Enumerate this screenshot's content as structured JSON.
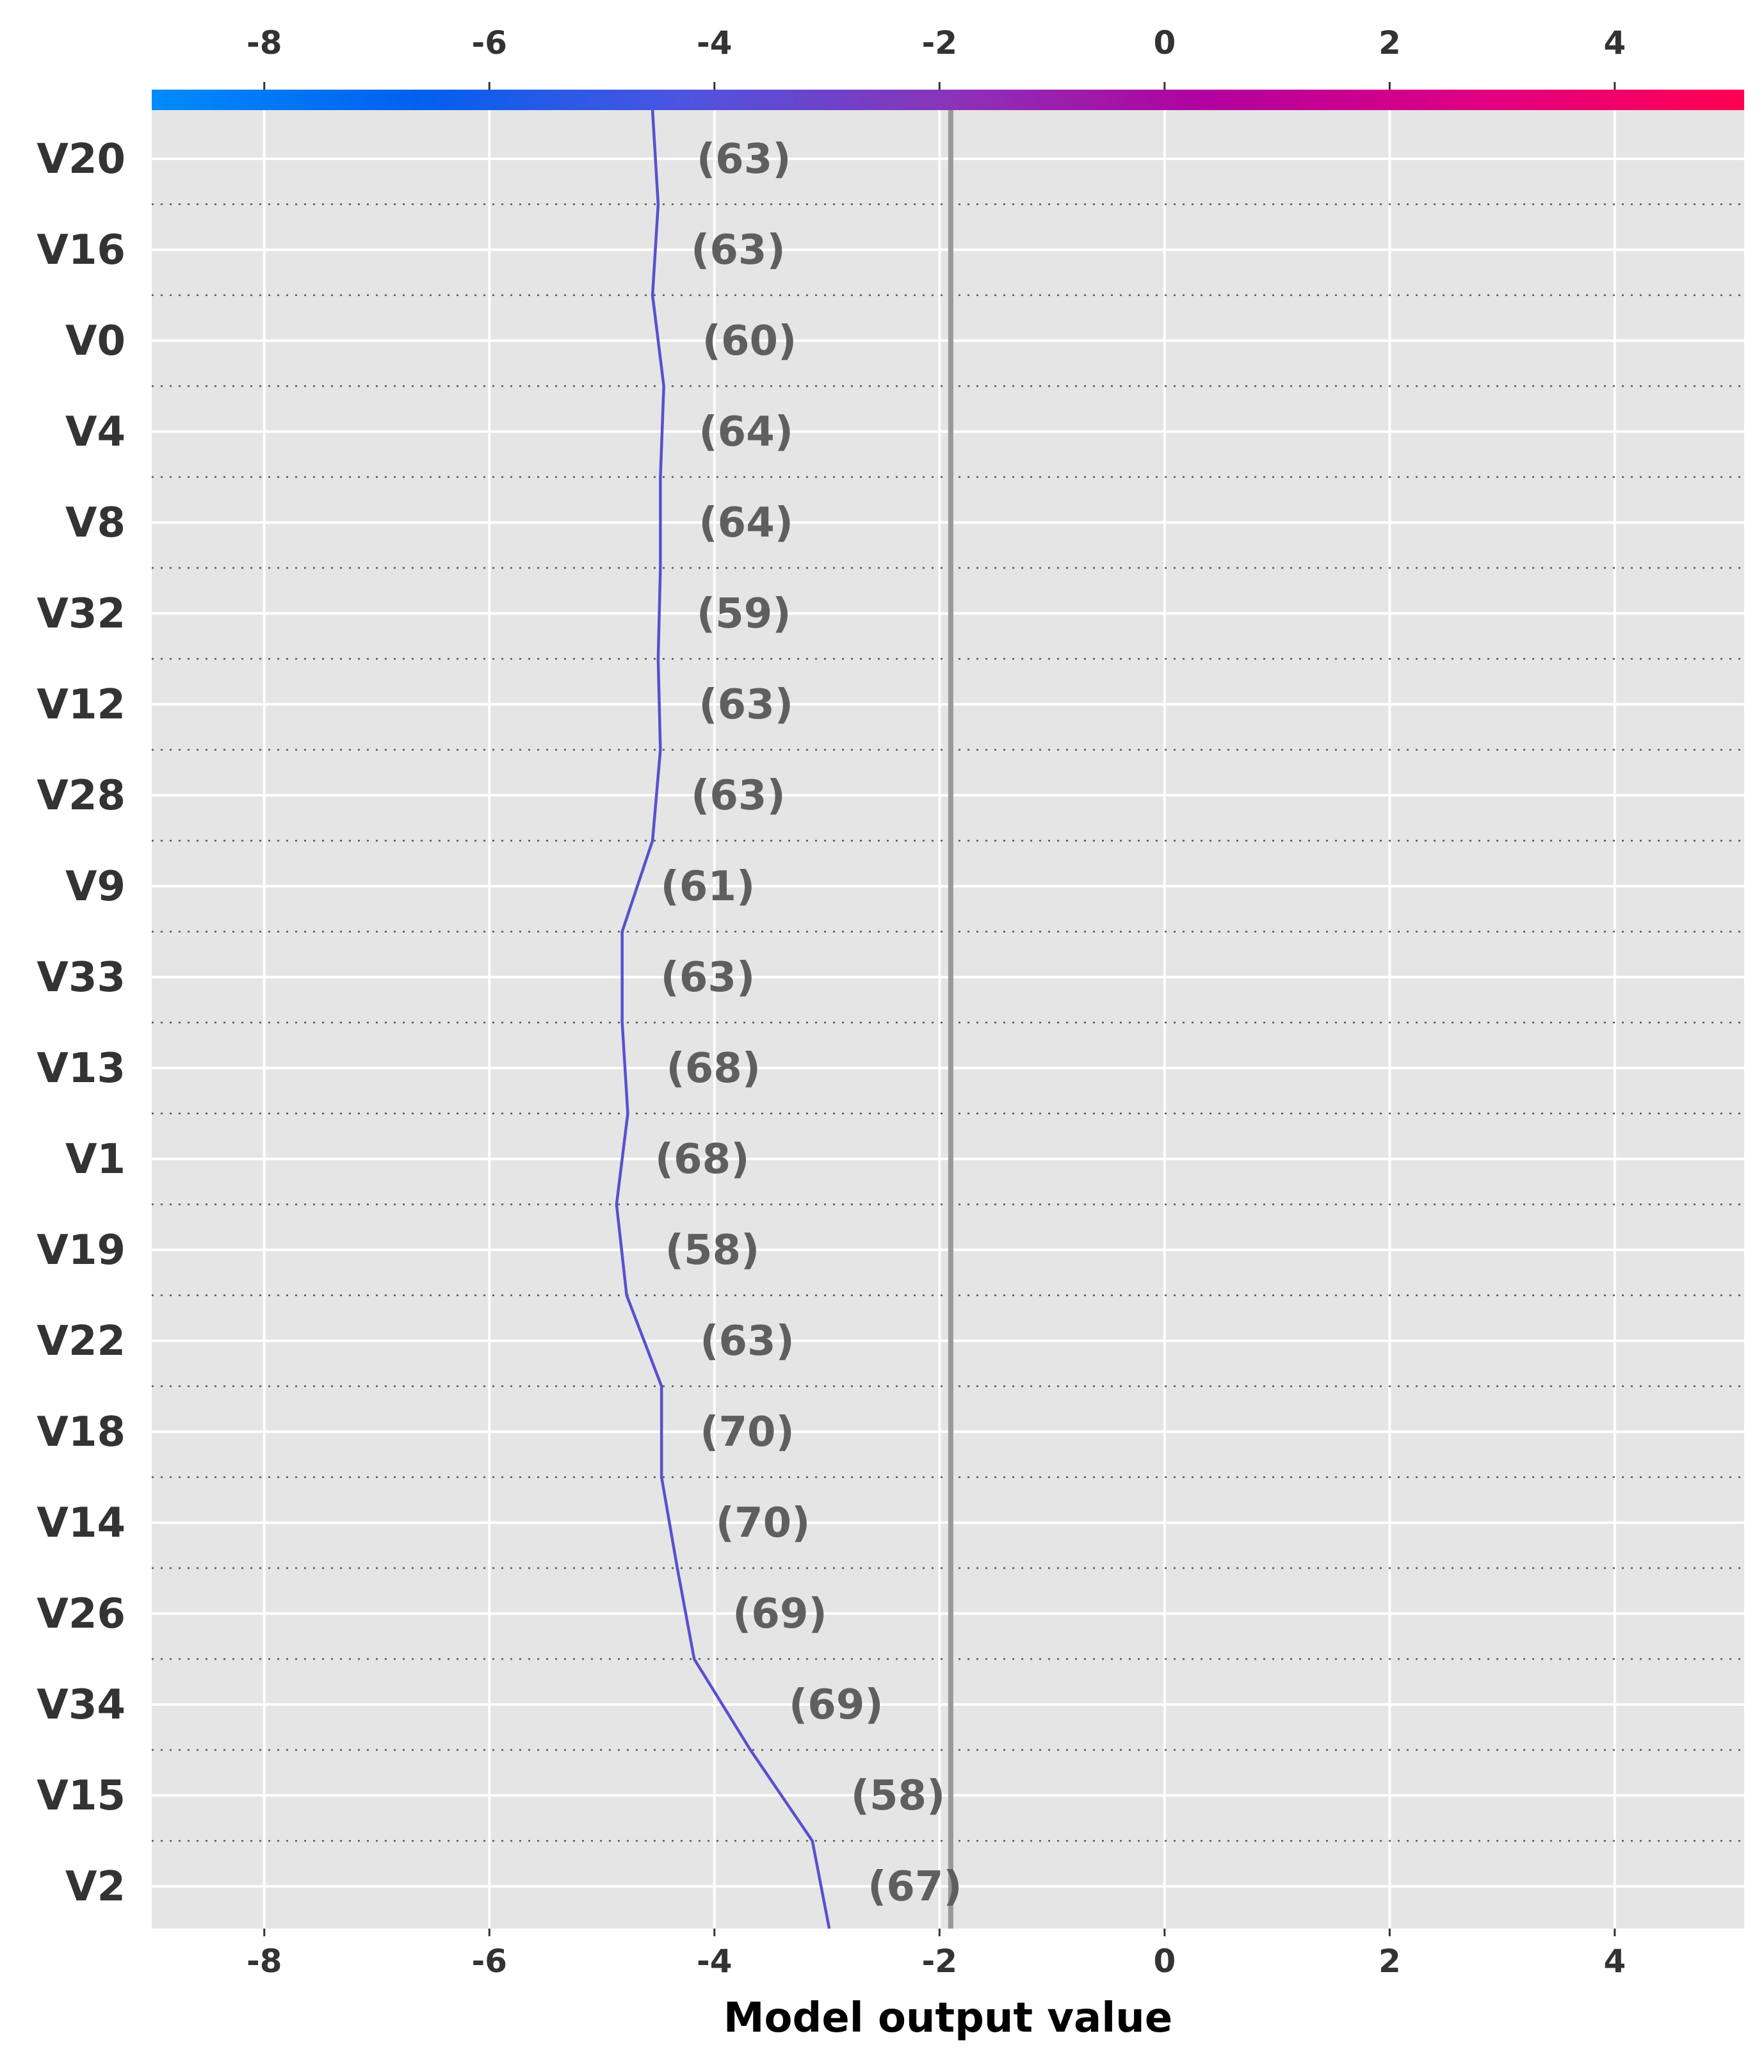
{
  "chart_data": {
    "type": "line",
    "plot_kind": "decision-plot",
    "xlabel": "Model output value",
    "xlim": [
      -9.0,
      5.15
    ],
    "xticks": [
      -8,
      -6,
      -4,
      -2,
      0,
      2,
      4
    ],
    "base_value": -1.9,
    "grid": true,
    "colorbar_position": "top",
    "colorbar_colors": [
      "#008bfb",
      "#0060ee",
      "#4d54e0",
      "#8a34b8",
      "#b2009e",
      "#df0082",
      "#ff0052"
    ],
    "line_color": "#5a4fcf",
    "features": [
      {
        "name": "V20",
        "value_label": "(63)",
        "path_value": -4.5
      },
      {
        "name": "V16",
        "value_label": "(63)",
        "path_value": -4.55
      },
      {
        "name": "V0",
        "value_label": "(60)",
        "path_value": -4.45
      },
      {
        "name": "V4",
        "value_label": "(64)",
        "path_value": -4.48
      },
      {
        "name": "V8",
        "value_label": "(64)",
        "path_value": -4.48
      },
      {
        "name": "V32",
        "value_label": "(59)",
        "path_value": -4.5
      },
      {
        "name": "V12",
        "value_label": "(63)",
        "path_value": -4.48
      },
      {
        "name": "V28",
        "value_label": "(63)",
        "path_value": -4.55
      },
      {
        "name": "V9",
        "value_label": "(61)",
        "path_value": -4.82
      },
      {
        "name": "V33",
        "value_label": "(63)",
        "path_value": -4.82
      },
      {
        "name": "V13",
        "value_label": "(68)",
        "path_value": -4.77
      },
      {
        "name": "V1",
        "value_label": "(68)",
        "path_value": -4.87
      },
      {
        "name": "V19",
        "value_label": "(58)",
        "path_value": -4.78
      },
      {
        "name": "V22",
        "value_label": "(63)",
        "path_value": -4.47
      },
      {
        "name": "V18",
        "value_label": "(70)",
        "path_value": -4.47
      },
      {
        "name": "V14",
        "value_label": "(70)",
        "path_value": -4.33
      },
      {
        "name": "V26",
        "value_label": "(69)",
        "path_value": -4.18
      },
      {
        "name": "V34",
        "value_label": "(69)",
        "path_value": -3.68
      },
      {
        "name": "V15",
        "value_label": "(58)",
        "path_value": -3.13
      },
      {
        "name": "V2",
        "value_label": "(67)",
        "path_value": -2.98
      }
    ],
    "start_value": -4.55
  }
}
